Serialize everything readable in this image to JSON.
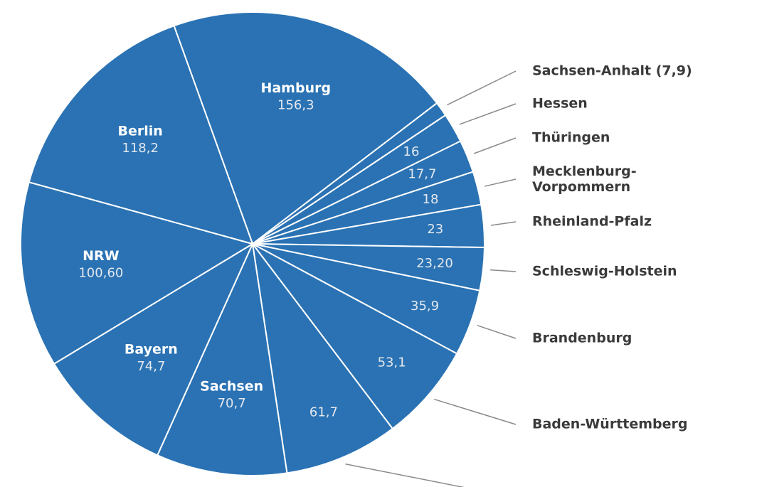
{
  "chart_data": {
    "type": "pie",
    "categories": [
      "Hamburg",
      "Sachsen-Anhalt (7,9)",
      "Hessen",
      "Thüringen",
      "Mecklenburg-Vorpommern",
      "Rheinland-Pfalz",
      "Schleswig-Holstein",
      "Brandenburg",
      "Baden-Württemberg",
      null,
      "Sachsen",
      "Bayern",
      "NRW",
      "Berlin"
    ],
    "values": [
      156.3,
      7.9,
      16,
      17.7,
      18,
      23,
      23.2,
      35.9,
      53.1,
      61.7,
      70.7,
      74.7,
      100.6,
      118.2
    ],
    "value_labels": [
      "156,3",
      null,
      "16",
      "17,7",
      "18",
      "23",
      "23,20",
      "35,9",
      "53,1",
      "61,7",
      "70,7",
      "74,7",
      "100,60",
      "118,2"
    ],
    "color": "#2a72b3"
  }
}
